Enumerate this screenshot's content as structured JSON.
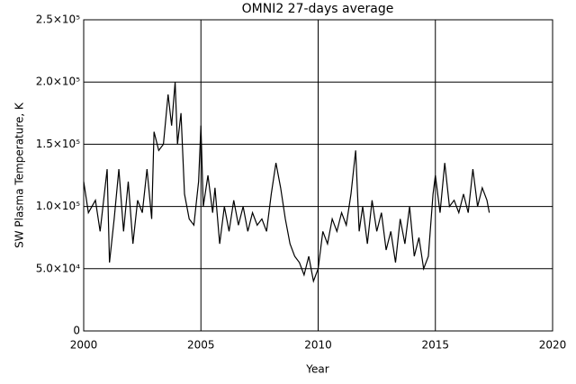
{
  "chart_data": {
    "type": "line",
    "title": "OMNI2 27-days average",
    "x_label": "Year",
    "y_label": "SW Plasma Temperature, K",
    "color": "#000000",
    "grid": true,
    "xlim": [
      2000,
      2020
    ],
    "xticks": [
      2000,
      2005,
      2010,
      2015,
      2020
    ],
    "ylim": [
      0,
      250000
    ],
    "yticks": [
      0,
      {
        "value": 50000,
        "label": "5.0×10⁴"
      },
      {
        "value": 100000,
        "label": "1.0×10⁵"
      },
      {
        "value": 150000,
        "label": "1.5×10⁵"
      },
      {
        "value": 200000,
        "label": "2.0×10⁵"
      },
      {
        "value": 250000,
        "label": "2.5×10⁵"
      }
    ],
    "x": [
      2000.0,
      2000.2,
      2000.5,
      2000.7,
      2001.0,
      2001.1,
      2001.3,
      2001.5,
      2001.7,
      2001.9,
      2002.1,
      2002.3,
      2002.5,
      2002.7,
      2002.9,
      2003.0,
      2003.2,
      2003.4,
      2003.6,
      2003.75,
      2003.9,
      2004.0,
      2004.15,
      2004.3,
      2004.5,
      2004.7,
      2004.9,
      2005.0,
      2005.1,
      2005.3,
      2005.5,
      2005.6,
      2005.8,
      2006.0,
      2006.2,
      2006.4,
      2006.6,
      2006.8,
      2007.0,
      2007.2,
      2007.4,
      2007.6,
      2007.8,
      2008.0,
      2008.2,
      2008.4,
      2008.6,
      2008.8,
      2009.0,
      2009.2,
      2009.4,
      2009.6,
      2009.8,
      2010.0,
      2010.2,
      2010.4,
      2010.6,
      2010.8,
      2011.0,
      2011.2,
      2011.4,
      2011.6,
      2011.75,
      2011.9,
      2012.1,
      2012.3,
      2012.5,
      2012.7,
      2012.9,
      2013.1,
      2013.3,
      2013.5,
      2013.7,
      2013.9,
      2014.1,
      2014.3,
      2014.5,
      2014.7,
      2014.9,
      2015.0,
      2015.2,
      2015.4,
      2015.6,
      2015.8,
      2016.0,
      2016.2,
      2016.4,
      2016.6,
      2016.8,
      2017.0,
      2017.2,
      2017.3
    ],
    "values": [
      120000,
      95000,
      105000,
      80000,
      130000,
      55000,
      90000,
      130000,
      80000,
      120000,
      70000,
      105000,
      95000,
      130000,
      90000,
      160000,
      145000,
      150000,
      190000,
      165000,
      200000,
      150000,
      175000,
      110000,
      90000,
      85000,
      120000,
      165000,
      100000,
      125000,
      95000,
      115000,
      70000,
      100000,
      80000,
      105000,
      85000,
      100000,
      80000,
      95000,
      85000,
      90000,
      80000,
      110000,
      135000,
      115000,
      90000,
      70000,
      60000,
      55000,
      45000,
      60000,
      40000,
      50000,
      80000,
      70000,
      90000,
      80000,
      95000,
      85000,
      110000,
      145000,
      80000,
      100000,
      70000,
      105000,
      80000,
      95000,
      65000,
      80000,
      55000,
      90000,
      70000,
      100000,
      60000,
      75000,
      50000,
      60000,
      110000,
      125000,
      95000,
      135000,
      100000,
      105000,
      95000,
      110000,
      95000,
      130000,
      100000,
      115000,
      105000,
      95000
    ]
  }
}
